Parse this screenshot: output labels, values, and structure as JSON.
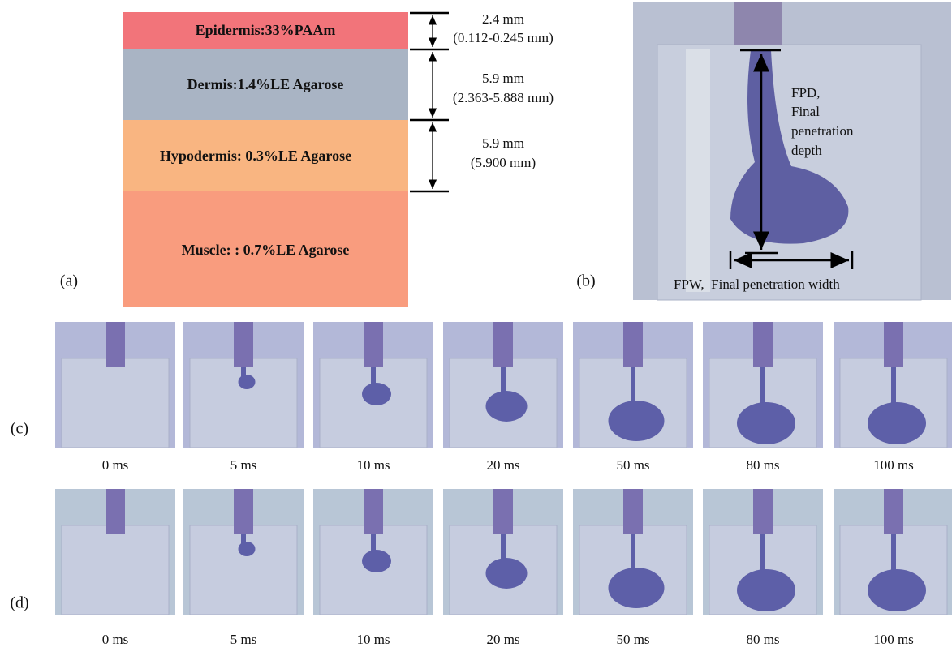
{
  "panel_a": {
    "label": "(a)",
    "layers": [
      "Epidermis:33%PAAm",
      "Dermis:1.4%LE Agarose",
      "Hypodermis: 0.3%LE Agarose",
      "Muscle: : 0.7%LE Agarose"
    ],
    "dimensions": [
      {
        "thickness": "2.4 mm",
        "range": "(0.112-0.245 mm)"
      },
      {
        "thickness": "5.9 mm",
        "range": "(2.363-5.888 mm)"
      },
      {
        "thickness": "5.9 mm",
        "range": "(5.900 mm)"
      }
    ]
  },
  "panel_b": {
    "label": "(b)",
    "fpd_lines": [
      "FPD,",
      "Final",
      "penetration",
      "depth"
    ],
    "fpw": "FPW,  Final penetration width"
  },
  "panel_c": {
    "label": "(c)",
    "times": [
      "0 ms",
      "5 ms",
      "10 ms",
      "20 ms",
      "50 ms",
      "80 ms",
      "100 ms"
    ]
  },
  "panel_d": {
    "label": "(d)",
    "times": [
      "0 ms",
      "5 ms",
      "10 ms",
      "20 ms",
      "50 ms",
      "80 ms",
      "100 ms"
    ]
  }
}
